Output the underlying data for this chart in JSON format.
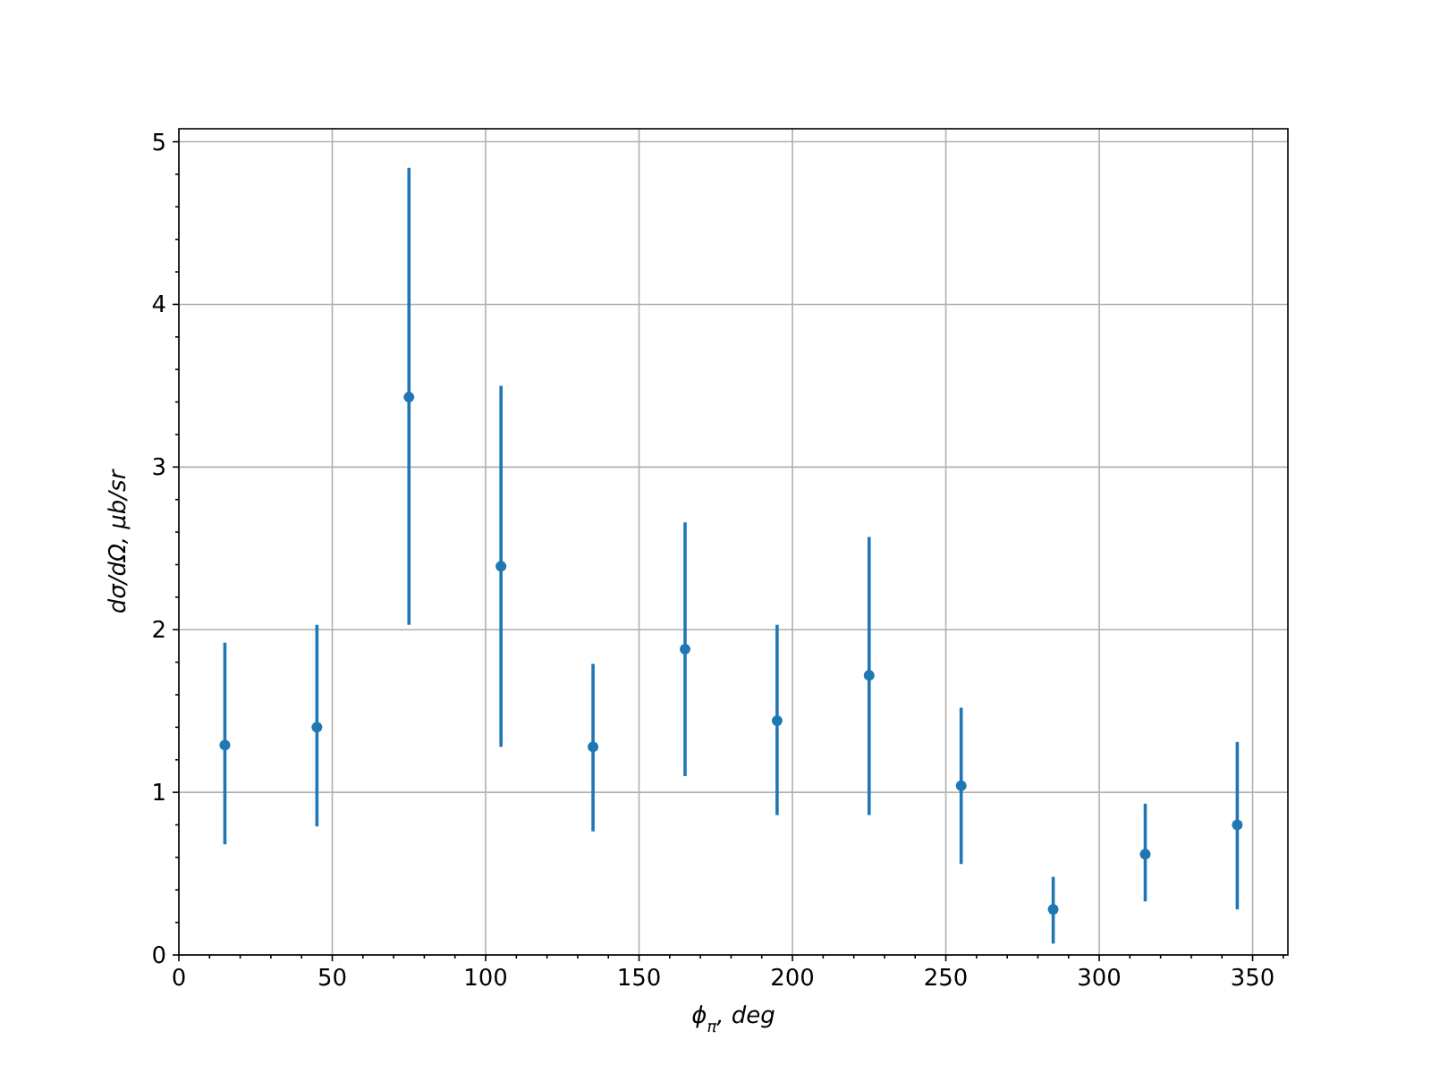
{
  "chart_data": {
    "type": "scatter",
    "xlabel": "ϕ$_{π}$, deg",
    "ylabel": "dσ/dΩ, μb/sr",
    "x": [
      15,
      45,
      75,
      105,
      135,
      165,
      195,
      225,
      255,
      285,
      315,
      345
    ],
    "series": [
      {
        "color": "#1f77b4",
        "values": [
          1.29,
          1.4,
          3.43,
          2.39,
          1.28,
          1.88,
          1.44,
          1.72,
          1.04,
          0.28,
          0.62,
          0.8
        ],
        "errors": [
          [
            0.68,
            1.92
          ],
          [
            0.79,
            2.03
          ],
          [
            2.03,
            4.84
          ],
          [
            1.28,
            3.5
          ],
          [
            0.76,
            1.79
          ],
          [
            1.1,
            2.66
          ],
          [
            0.86,
            2.03
          ],
          [
            0.86,
            2.57
          ],
          [
            0.56,
            1.52
          ],
          [
            0.07,
            0.48
          ],
          [
            0.33,
            0.93
          ],
          [
            0.28,
            1.31
          ]
        ]
      }
    ],
    "xlim": [
      0,
      361.5
    ],
    "ylim": [
      0,
      5.08
    ],
    "xticks": [
      0,
      {
        "value": 10,
        "label": null
      },
      {
        "value": 20,
        "label": null
      },
      {
        "value": 30,
        "label": null
      },
      {
        "value": 40,
        "label": null
      },
      50,
      {
        "value": 60,
        "label": null
      },
      {
        "value": 70,
        "label": null
      },
      {
        "value": 80,
        "label": null
      },
      {
        "value": 90,
        "label": null
      },
      100,
      {
        "value": 110,
        "label": null
      },
      {
        "value": 120,
        "label": null
      },
      {
        "value": 130,
        "label": null
      },
      {
        "value": 140,
        "label": null
      },
      150,
      {
        "value": 160,
        "label": null
      },
      {
        "value": 170,
        "label": null
      },
      {
        "value": 180,
        "label": null
      },
      {
        "value": 190,
        "label": null
      },
      200,
      {
        "value": 210,
        "label": null
      },
      {
        "value": 220,
        "label": null
      },
      {
        "value": 230,
        "label": null
      },
      {
        "value": 240,
        "label": null
      },
      250,
      {
        "value": 260,
        "label": null
      },
      {
        "value": 270,
        "label": null
      },
      {
        "value": 280,
        "label": null
      },
      {
        "value": 290,
        "label": null
      },
      300,
      {
        "value": 310,
        "label": null
      },
      {
        "value": 320,
        "label": null
      },
      {
        "value": 330,
        "label": null
      },
      {
        "value": 340,
        "label": null
      },
      350,
      {
        "value": 360,
        "label": null
      }
    ],
    "yticks": [
      0,
      {
        "value": 0.2,
        "label": null
      },
      {
        "value": 0.4,
        "label": null
      },
      {
        "value": 0.6,
        "label": null
      },
      {
        "value": 0.8,
        "label": null
      },
      1,
      {
        "value": 1.2,
        "label": null
      },
      {
        "value": 1.4,
        "label": null
      },
      {
        "value": 1.6,
        "label": null
      },
      {
        "value": 1.8,
        "label": null
      },
      2,
      {
        "value": 2.2,
        "label": null
      },
      {
        "value": 2.4,
        "label": null
      },
      {
        "value": 2.6,
        "label": null
      },
      {
        "value": 2.8,
        "label": null
      },
      3,
      {
        "value": 3.2,
        "label": null
      },
      {
        "value": 3.4,
        "label": null
      },
      {
        "value": 3.6,
        "label": null
      },
      {
        "value": 3.8,
        "label": null
      },
      4,
      {
        "value": 4.2,
        "label": null
      },
      {
        "value": 4.4,
        "label": null
      },
      {
        "value": 4.6,
        "label": null
      },
      {
        "value": 4.8,
        "label": null
      },
      5
    ],
    "grid": true,
    "marker": "circle"
  }
}
